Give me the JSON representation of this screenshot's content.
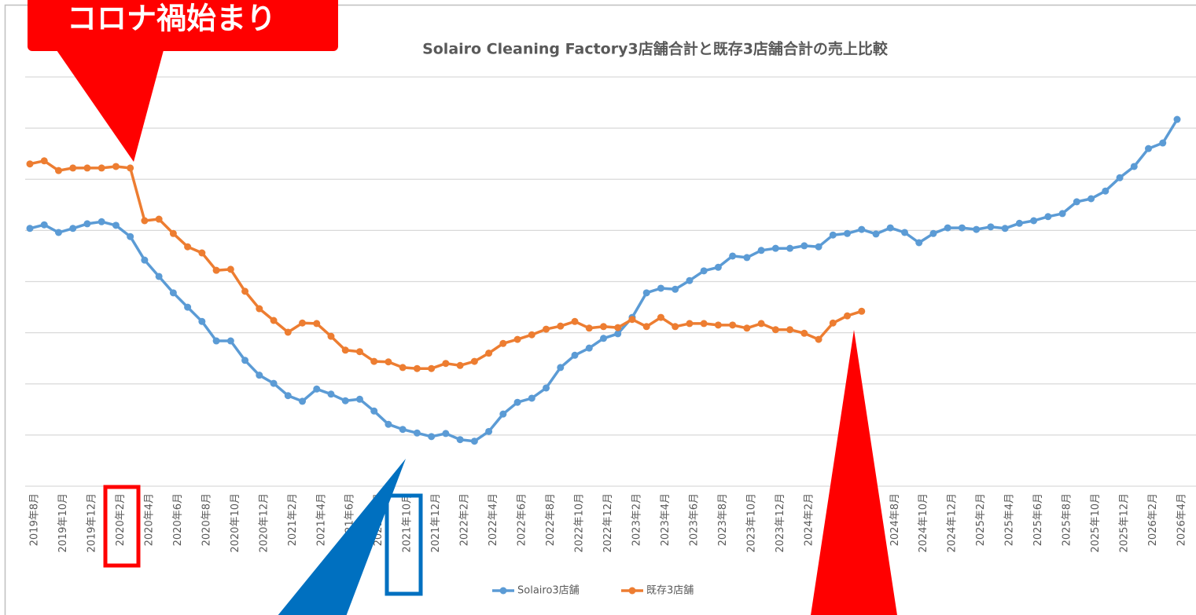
{
  "chart_data": {
    "type": "line",
    "title": "Solairo Cleaning Factory3店舗合計と既存3店舗合計の売上比較",
    "annotation": "コロナ禍始まり",
    "categories": [
      "2019年8月",
      null,
      "2019年10月",
      null,
      "2019年12月",
      null,
      "2020年2月",
      null,
      "2020年4月",
      null,
      "2020年6月",
      null,
      "2020年8月",
      null,
      "2020年10月",
      null,
      "2020年12月",
      null,
      "2021年2月",
      null,
      "2021年4月",
      null,
      "2021年6月",
      null,
      "2021年8月",
      null,
      "2021年10月",
      null,
      "2021年12月",
      null,
      "2022年2月",
      null,
      "2022年4月",
      null,
      "2022年6月",
      null,
      "2022年8月",
      null,
      "2022年10月",
      null,
      "2022年12月",
      null,
      "2023年2月",
      null,
      "2023年4月",
      null,
      "2023年6月",
      null,
      "2023年8月",
      null,
      "2023年10月",
      null,
      "2023年12月",
      null,
      "2024年2月",
      null,
      "2024年4月",
      null,
      "2024年6月",
      null,
      "2024年8月",
      null,
      "2024年10月",
      null,
      "2024年12月",
      null,
      "2025年2月",
      null,
      "2025年4月",
      null,
      "2025年6月",
      null,
      "2025年8月",
      null,
      "2025年10月",
      null,
      "2025年12月",
      null,
      "2026年2月",
      null,
      "2026年4月"
    ],
    "series": [
      {
        "name": "Solairo3店舗",
        "color": "#5b9bd5",
        "values": [
          5.04,
          5.11,
          4.96,
          5.04,
          5.13,
          5.17,
          5.1,
          4.88,
          4.42,
          4.1,
          3.78,
          3.5,
          3.22,
          2.84,
          2.84,
          2.46,
          2.17,
          2.01,
          1.77,
          1.66,
          1.9,
          1.8,
          1.67,
          1.7,
          1.47,
          1.21,
          1.11,
          1.04,
          0.97,
          1.03,
          0.91,
          0.88,
          1.07,
          1.41,
          1.64,
          1.72,
          1.92,
          2.32,
          2.56,
          2.7,
          2.89,
          2.98,
          3.3,
          3.78,
          3.87,
          3.85,
          4.02,
          4.21,
          4.28,
          4.5,
          4.47,
          4.61,
          4.65,
          4.65,
          4.7,
          4.68,
          4.91,
          4.94,
          5.02,
          4.93,
          5.05,
          4.96,
          4.76,
          4.94,
          5.05,
          5.05,
          5.02,
          5.07,
          5.04,
          5.14,
          5.19,
          5.27,
          5.33,
          5.56,
          5.62,
          5.77,
          6.03,
          6.25,
          6.6,
          6.71,
          7.17
        ]
      },
      {
        "name": "既存3店舗",
        "color": "#ed7d31",
        "values": [
          6.3,
          6.36,
          6.17,
          6.22,
          6.22,
          6.22,
          6.25,
          6.22,
          5.19,
          5.22,
          4.94,
          4.68,
          4.56,
          4.22,
          4.24,
          3.81,
          3.47,
          3.24,
          3.01,
          3.19,
          3.18,
          2.93,
          2.66,
          2.63,
          2.44,
          2.43,
          2.32,
          2.3,
          2.3,
          2.4,
          2.36,
          2.44,
          2.6,
          2.79,
          2.87,
          2.96,
          3.07,
          3.13,
          3.22,
          3.09,
          3.12,
          3.1,
          3.26,
          3.12,
          3.3,
          3.12,
          3.18,
          3.18,
          3.15,
          3.15,
          3.09,
          3.18,
          3.06,
          3.06,
          2.99,
          2.87,
          3.19,
          3.33,
          3.42,
          null,
          null,
          null,
          null,
          null,
          null,
          null,
          null,
          null,
          null,
          null,
          null,
          null,
          null,
          null,
          null,
          null,
          null,
          null,
          null,
          null,
          null
        ]
      }
    ],
    "ylim": [
      0,
      8
    ],
    "yticks": [
      0,
      1,
      2,
      3,
      4,
      5,
      6,
      7,
      8
    ],
    "grid": true,
    "legend": "bottom"
  }
}
